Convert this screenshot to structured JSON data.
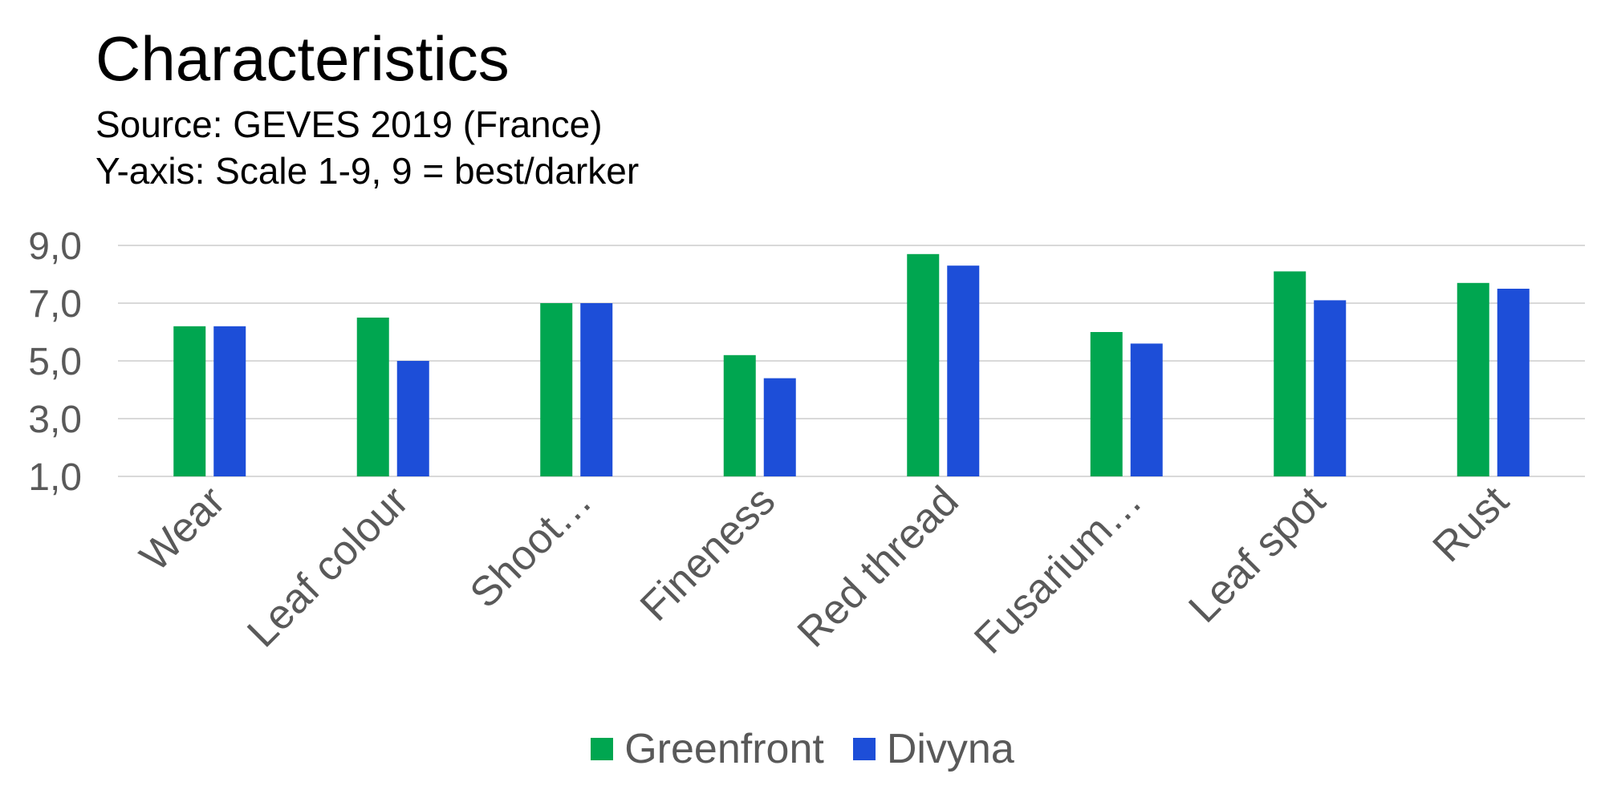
{
  "chart_data": {
    "type": "bar",
    "title": "Characteristics",
    "subtitle": [
      "Source: GEVES 2019 (France)",
      "Y-axis: Scale 1-9, 9 = best/darker"
    ],
    "categories": [
      "Wear",
      "Leaf colour",
      "Shoot…",
      "Fineness",
      "Red thread",
      "Fusarium…",
      "Leaf spot",
      "Rust"
    ],
    "series": [
      {
        "name": "Greenfront",
        "color": "#00A650",
        "values": [
          6.2,
          6.5,
          7.0,
          5.2,
          8.7,
          6.0,
          8.1,
          7.7
        ]
      },
      {
        "name": "Divyna",
        "color": "#1D4ED8",
        "values": [
          6.2,
          5.0,
          7.0,
          4.4,
          8.3,
          5.6,
          7.1,
          7.5
        ]
      }
    ],
    "ylim": [
      1,
      9
    ],
    "yticks": [
      1,
      3,
      5,
      7,
      9
    ],
    "ytick_labels": [
      "1,0",
      "3,0",
      "5,0",
      "7,0",
      "9,0"
    ],
    "grid": true,
    "legend": "bottom"
  }
}
